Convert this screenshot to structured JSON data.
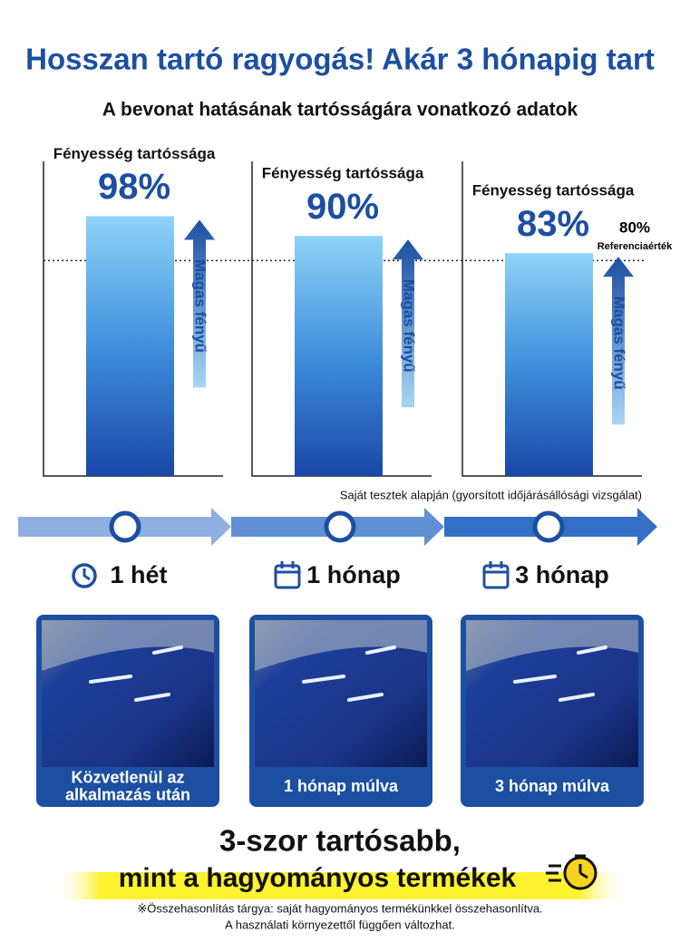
{
  "chart_data": {
    "type": "bar",
    "title": "Hosszan tartó ragyogás! Akár 3 hónapig tart",
    "subtitle": "A bevonat hatásának tartósságára vonatkozó adatok",
    "categories": [
      "1 hét",
      "1 hónap",
      "3 hónap"
    ],
    "bar_label": "Fényesség tartóssága",
    "values": [
      98,
      90,
      83
    ],
    "value_labels": [
      "98%",
      "90%",
      "83%"
    ],
    "color": "#2a72c8",
    "arrow_label": "Magas fényű",
    "reference": {
      "value": 80,
      "label": "80%",
      "name": "Referenciaérték"
    },
    "source_note": "Saját tesztek alapján (gyorsított időjárásállósági vizsgálat)",
    "captions": [
      [
        "Közvetlenül az",
        "alkalmazás után"
      ],
      [
        "1 hónap múlva"
      ],
      [
        "3 hónap múlva"
      ]
    ],
    "headline": [
      "3-szor tartósabb,",
      "mint a hagyományos termékek"
    ],
    "footnotes": [
      "※Összehasonlítás tárgya: saját hagyományos termékünkkel összehasonlítva.",
      "A használati környezettől függően változhat."
    ]
  }
}
